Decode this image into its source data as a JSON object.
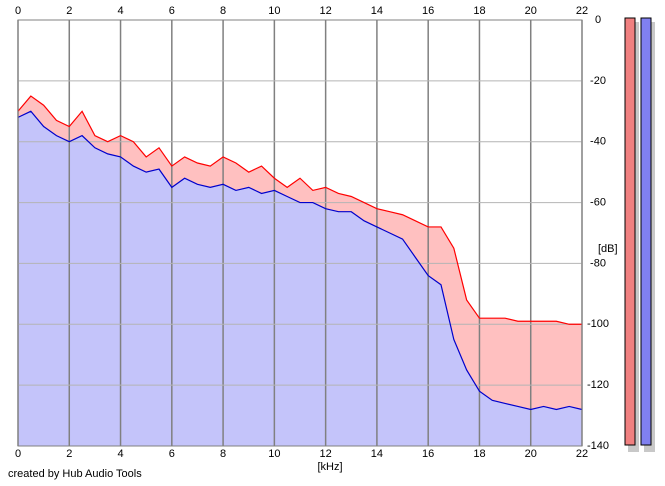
{
  "chart_data": {
    "type": "line",
    "xlabel": "[kHz]",
    "ylabel": "[dB]",
    "credit": "created by Hub Audio Tools",
    "x": [
      0,
      0.5,
      1,
      1.5,
      2,
      2.5,
      3,
      3.5,
      4,
      4.5,
      5,
      5.5,
      6,
      6.5,
      7,
      7.5,
      8,
      8.5,
      9,
      9.5,
      10,
      10.5,
      11,
      11.5,
      12,
      12.5,
      13,
      13.5,
      14,
      14.5,
      15,
      15.5,
      16,
      16.5,
      17,
      17.5,
      18,
      18.5,
      19,
      19.5,
      20,
      20.5,
      21,
      21.5,
      22
    ],
    "series": [
      {
        "color": "#ff0000",
        "fill": "#ffc0c0",
        "values": [
          -30,
          -25,
          -28,
          -33,
          -35,
          -30,
          -38,
          -40,
          -38,
          -40,
          -45,
          -42,
          -48,
          -45,
          -47,
          -48,
          -45,
          -47,
          -50,
          -48,
          -52,
          -55,
          -52,
          -56,
          -55,
          -57,
          -58,
          -60,
          -62,
          -63,
          -64,
          -66,
          -68,
          -68,
          -75,
          -92,
          -98,
          -98,
          -98,
          -99,
          -99,
          -99,
          -99,
          -100,
          -100
        ]
      },
      {
        "color": "#0000cc",
        "fill": "#c4c4fa",
        "values": [
          -32,
          -30,
          -35,
          -38,
          -40,
          -38,
          -42,
          -44,
          -45,
          -48,
          -50,
          -49,
          -55,
          -52,
          -54,
          -55,
          -54,
          -56,
          -55,
          -57,
          -56,
          -58,
          -60,
          -60,
          -62,
          -63,
          -63,
          -66,
          -68,
          -70,
          -72,
          -78,
          -84,
          -87,
          -105,
          -115,
          -122,
          -125,
          -126,
          -127,
          -128,
          -127,
          -128,
          -127,
          -128
        ]
      }
    ],
    "xlim": [
      0,
      22
    ],
    "xticks": [
      0,
      2,
      4,
      6,
      8,
      10,
      12,
      14,
      16,
      18,
      20,
      22
    ],
    "ylim": [
      -140,
      0
    ],
    "yticks": [
      0,
      -20,
      -40,
      -60,
      -80,
      -100,
      -120,
      -140
    ],
    "grid": true
  }
}
